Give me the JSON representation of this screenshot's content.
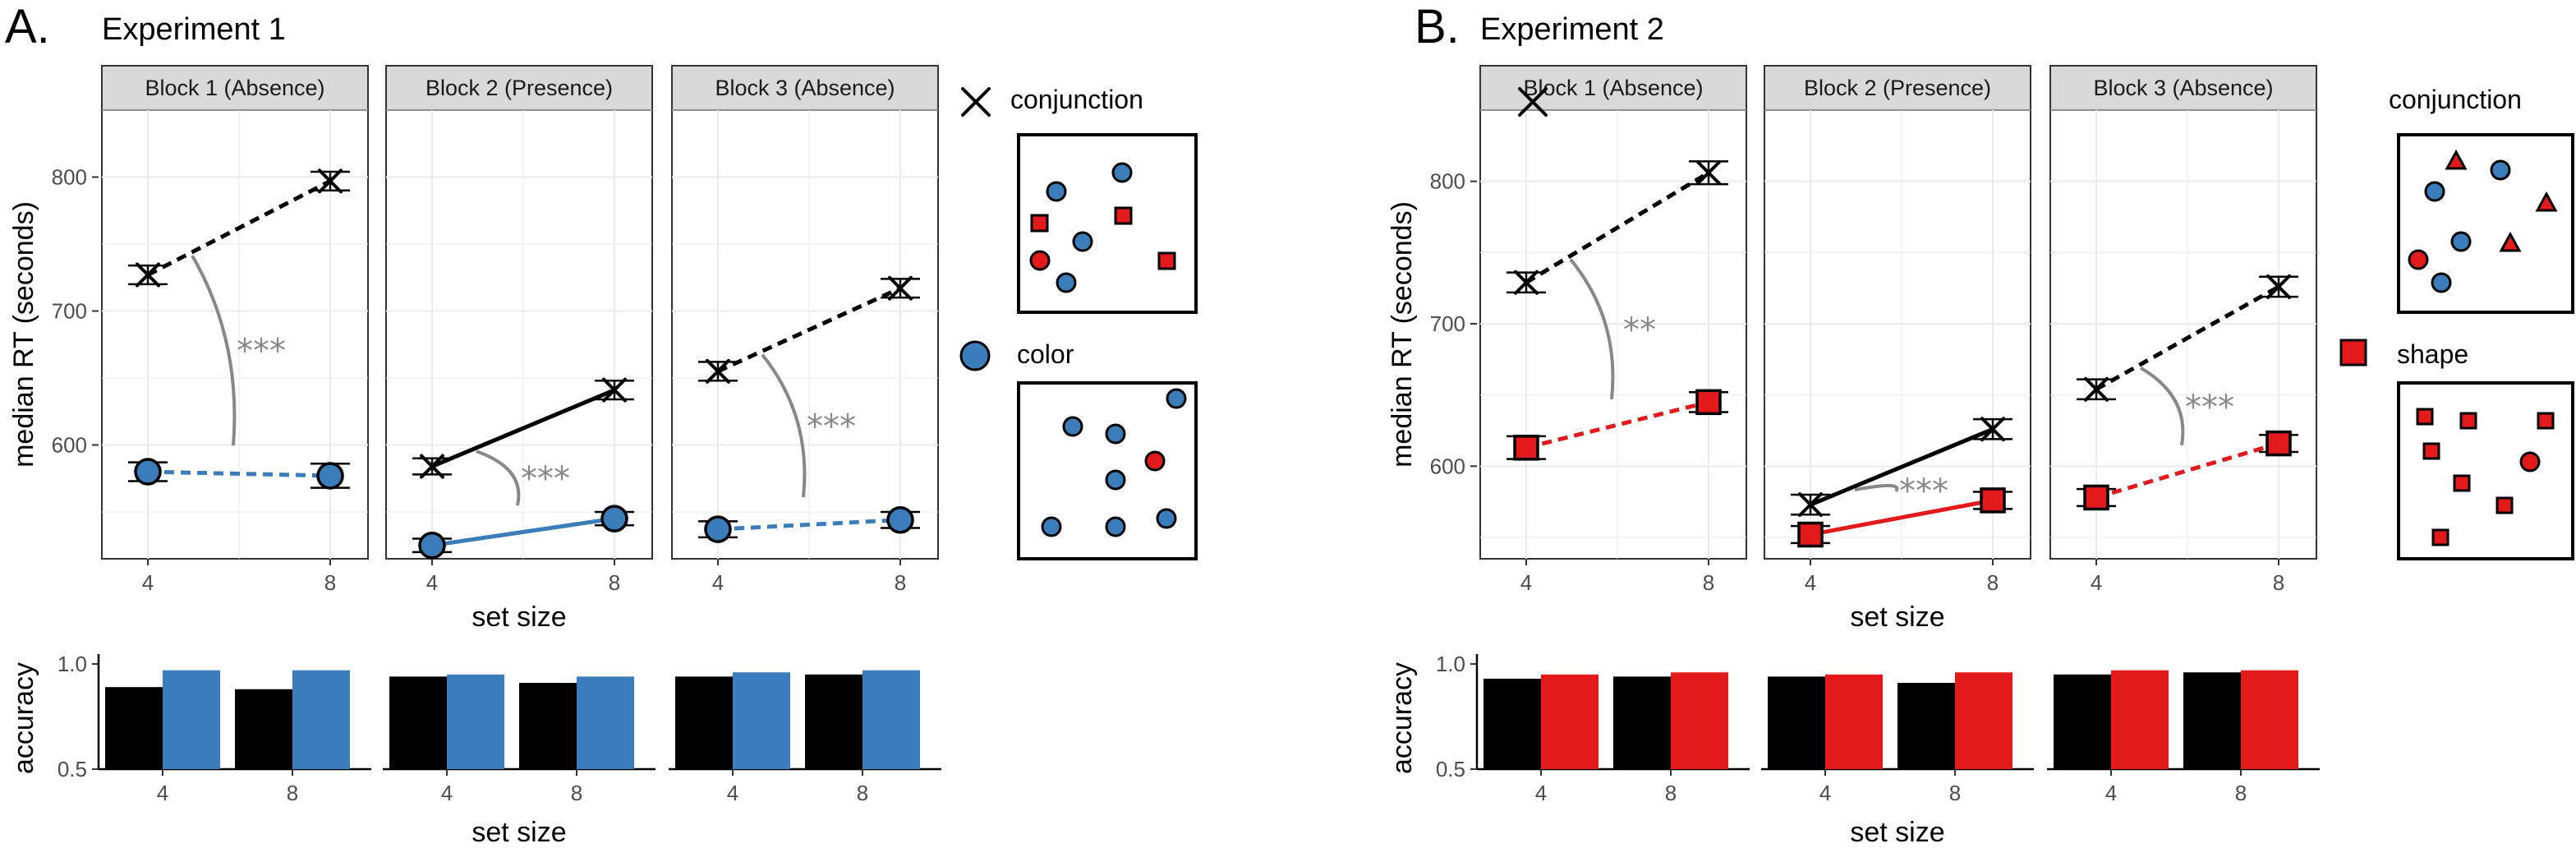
{
  "colors": {
    "conjunction": "#000000",
    "color": "#3A7DBA",
    "shape": "#E31A1C",
    "significance": "#888888",
    "strip": "#D9D9D9",
    "grid": "#EBEBEB"
  },
  "experiment1": {
    "panel_letter": "A.",
    "title": "Experiment 1",
    "legend": {
      "conjunction_label": "conjunction",
      "feature_label": "color",
      "conjunction_icon": "x-icon",
      "feature_icon": "circle-icon"
    }
  },
  "experiment2": {
    "panel_letter": "B.",
    "title": "Experiment 2",
    "legend": {
      "conjunction_label": "conjunction",
      "feature_label": "shape",
      "conjunction_icon": "x-icon",
      "feature_icon": "square-icon"
    }
  },
  "chart_data": [
    {
      "id": "exp1_rt",
      "type": "line",
      "experiment": "Experiment 1",
      "ylabel": "median RT (seconds)",
      "xlabel": "set size",
      "x": [
        4,
        8
      ],
      "ylim": [
        515,
        850
      ],
      "yticks": [
        600,
        700,
        800
      ],
      "facets": [
        {
          "label": "Block 1 (Absence)",
          "sig": "***",
          "series": [
            {
              "name": "conjunction",
              "values": [
                727,
                797
              ],
              "err": [
                7,
                7
              ],
              "line": "dashed"
            },
            {
              "name": "color",
              "values": [
                580,
                577
              ],
              "err": [
                7,
                9
              ],
              "line": "dashed"
            }
          ]
        },
        {
          "label": "Block 2 (Presence)",
          "sig": "***",
          "series": [
            {
              "name": "conjunction",
              "values": [
                584,
                641
              ],
              "err": [
                6,
                7
              ],
              "line": "solid"
            },
            {
              "name": "color",
              "values": [
                525,
                545
              ],
              "err": [
                5,
                5
              ],
              "line": "solid"
            }
          ]
        },
        {
          "label": "Block 3 (Absence)",
          "sig": "***",
          "series": [
            {
              "name": "conjunction",
              "values": [
                655,
                717
              ],
              "err": [
                7,
                7
              ],
              "line": "dashed"
            },
            {
              "name": "color",
              "values": [
                537,
                544
              ],
              "err": [
                6,
                6
              ],
              "line": "dashed"
            }
          ]
        }
      ]
    },
    {
      "id": "exp1_accuracy",
      "type": "bar",
      "experiment": "Experiment 1",
      "ylabel": "accuracy",
      "xlabel": "set size",
      "categories": [
        "4",
        "8"
      ],
      "ylim": [
        0.5,
        1.0
      ],
      "yticks": [
        0.5,
        1.0
      ],
      "facets": [
        {
          "series": [
            {
              "name": "conjunction",
              "values": [
                0.89,
                0.88
              ]
            },
            {
              "name": "color",
              "values": [
                0.97,
                0.97
              ]
            }
          ]
        },
        {
          "series": [
            {
              "name": "conjunction",
              "values": [
                0.94,
                0.91
              ]
            },
            {
              "name": "color",
              "values": [
                0.95,
                0.94
              ]
            }
          ]
        },
        {
          "series": [
            {
              "name": "conjunction",
              "values": [
                0.94,
                0.95
              ]
            },
            {
              "name": "color",
              "values": [
                0.96,
                0.97
              ]
            }
          ]
        }
      ]
    },
    {
      "id": "exp2_rt",
      "type": "line",
      "experiment": "Experiment 2",
      "ylabel": "median RT (seconds)",
      "xlabel": "set size",
      "x": [
        4,
        8
      ],
      "ylim": [
        535,
        850
      ],
      "yticks": [
        600,
        700,
        800
      ],
      "facets": [
        {
          "label": "Block 1 (Absence)",
          "sig": "**",
          "series": [
            {
              "name": "conjunction",
              "values": [
                729,
                806
              ],
              "err": [
                7,
                8
              ],
              "line": "dashed"
            },
            {
              "name": "shape",
              "values": [
                613,
                645
              ],
              "err": [
                8,
                7
              ],
              "line": "dashed"
            }
          ]
        },
        {
          "label": "Block 2 (Presence)",
          "sig": "***",
          "series": [
            {
              "name": "conjunction",
              "values": [
                573,
                626
              ],
              "err": [
                7,
                7
              ],
              "line": "solid"
            },
            {
              "name": "shape",
              "values": [
                552,
                576
              ],
              "err": [
                6,
                6
              ],
              "line": "solid"
            }
          ]
        },
        {
          "label": "Block 3 (Absence)",
          "sig": "***",
          "series": [
            {
              "name": "conjunction",
              "values": [
                654,
                726
              ],
              "err": [
                7,
                7
              ],
              "line": "dashed"
            },
            {
              "name": "shape",
              "values": [
                578,
                616
              ],
              "err": [
                6,
                6
              ],
              "line": "dashed"
            }
          ]
        }
      ]
    },
    {
      "id": "exp2_accuracy",
      "type": "bar",
      "experiment": "Experiment 2",
      "ylabel": "accuracy",
      "xlabel": "set size",
      "categories": [
        "4",
        "8"
      ],
      "ylim": [
        0.5,
        1.0
      ],
      "yticks": [
        0.5,
        1.0
      ],
      "facets": [
        {
          "series": [
            {
              "name": "conjunction",
              "values": [
                0.93,
                0.94
              ]
            },
            {
              "name": "shape",
              "values": [
                0.95,
                0.96
              ]
            }
          ]
        },
        {
          "series": [
            {
              "name": "conjunction",
              "values": [
                0.94,
                0.91
              ]
            },
            {
              "name": "shape",
              "values": [
                0.95,
                0.96
              ]
            }
          ]
        },
        {
          "series": [
            {
              "name": "conjunction",
              "values": [
                0.95,
                0.96
              ]
            },
            {
              "name": "shape",
              "values": [
                0.97,
                0.97
              ]
            }
          ]
        }
      ]
    }
  ]
}
